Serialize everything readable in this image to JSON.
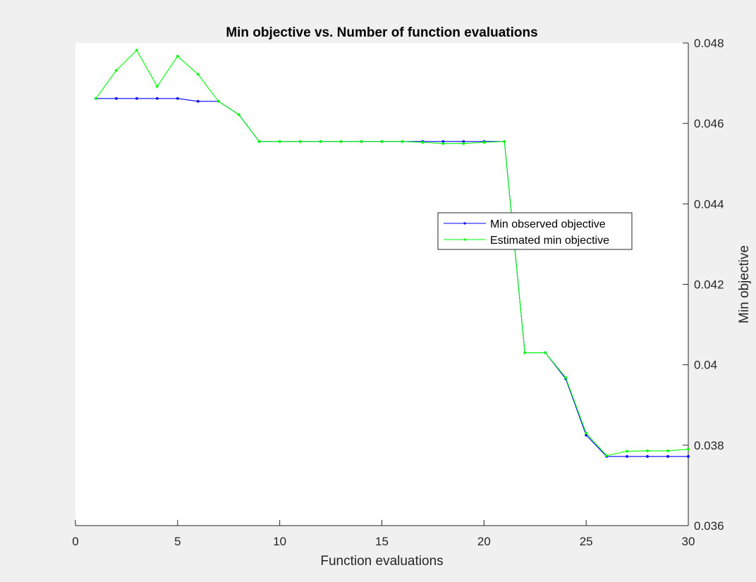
{
  "chart_data": {
    "type": "line",
    "title": "Min objective vs. Number of function evaluations",
    "xlabel": "Function evaluations",
    "ylabel": "Min objective",
    "xlim": [
      0,
      30
    ],
    "ylim": [
      0.036,
      0.048
    ],
    "x_ticks": [
      "0",
      "5",
      "10",
      "15",
      "20",
      "25",
      "30"
    ],
    "y_ticks": [
      "0.036",
      "0.038",
      "0.04",
      "0.042",
      "0.044",
      "0.046",
      "0.048"
    ],
    "y_axis_side": "right",
    "grid": false,
    "legend_position": "center-right",
    "x": [
      1,
      2,
      3,
      4,
      5,
      6,
      7,
      8,
      9,
      10,
      11,
      12,
      13,
      14,
      15,
      16,
      17,
      18,
      19,
      20,
      21,
      22,
      23,
      24,
      25,
      26,
      27,
      28,
      29,
      30
    ],
    "series": [
      {
        "name": "Min observed objective",
        "color": "#0000ff",
        "values": [
          0.04662,
          0.04662,
          0.04662,
          0.04662,
          0.04662,
          0.04655,
          0.04655,
          0.04622,
          0.04555,
          0.04555,
          0.04555,
          0.04555,
          0.04555,
          0.04555,
          0.04555,
          0.04555,
          0.04555,
          0.04555,
          0.04555,
          0.04555,
          0.04555,
          0.0403,
          0.0403,
          0.03965,
          0.03825,
          0.03772,
          0.03772,
          0.03772,
          0.03772,
          0.03772
        ]
      },
      {
        "name": "Estimated min objective",
        "color": "#00ff00",
        "values": [
          0.04662,
          0.04732,
          0.04782,
          0.04692,
          0.04767,
          0.04722,
          0.04655,
          0.04622,
          0.04555,
          0.04555,
          0.04555,
          0.04555,
          0.04555,
          0.04555,
          0.04555,
          0.04555,
          0.04553,
          0.0455,
          0.0455,
          0.04553,
          0.04555,
          0.0403,
          0.0403,
          0.03968,
          0.0383,
          0.03774,
          0.03785,
          0.03786,
          0.03786,
          0.0379
        ]
      }
    ]
  }
}
